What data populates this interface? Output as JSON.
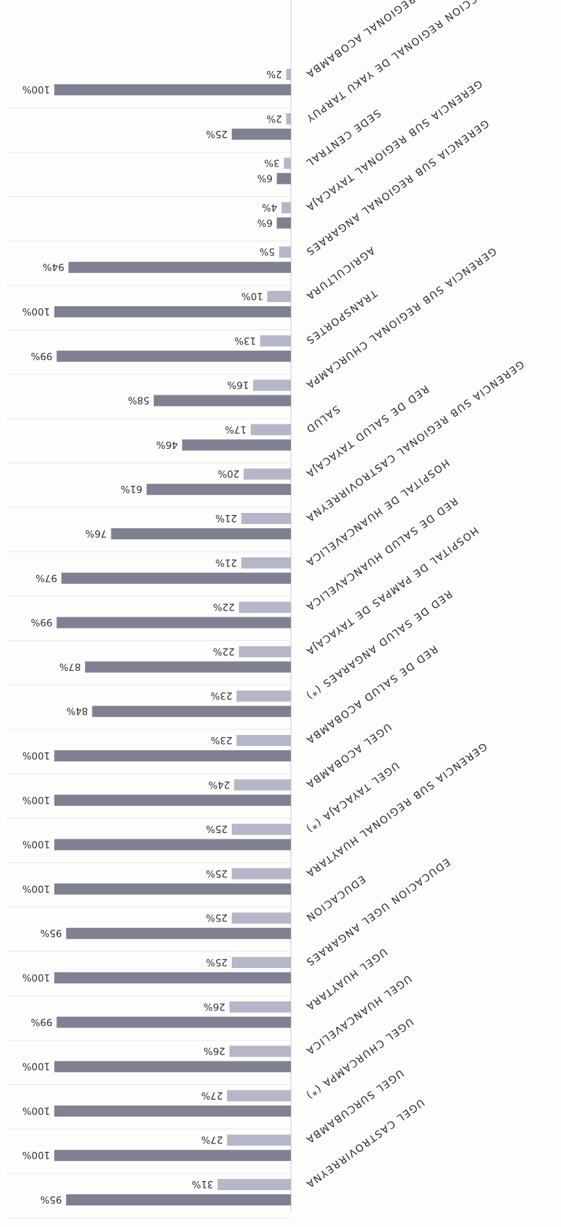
{
  "chart_data": {
    "type": "bar",
    "orientation": "horizontal",
    "rendered_rotated_degrees": 180,
    "categories": [
      "UGEL CASTROVIRREYNA",
      "UGEL SURCUBAMBA",
      "UGEL CHURCAMPA (*)",
      "UGEL HUANCAVELICA",
      "UGEL HUAYTARA",
      "EDUCACION UGEL ANGARAES",
      "EDUCACION",
      "GERENCIA SUB REGIONAL HUAYTARA",
      "UGEL TAYACAJA (*)",
      "UGEL ACOBAMBA",
      "RED DE SALUD ACOBAMBA",
      "RED DE SALUD ANGARAES (*)",
      "HOSPITAL DE PAMPAS DE TAYACAJA",
      "RED DE SALUD HUANCAVELICA",
      "HOSPITAL DE HUANCAVELICA",
      "GERENCIA SUB REGIONAL CASTROVIRREYNA",
      "RED DE SALUD TAYACAJA",
      "SALUD",
      "GERENCIA SUB REGIONAL CHURCAMPA",
      "TRANSPORTES",
      "AGRICULTURA",
      "GERENCIA SUB REGIONAL ANGARAES",
      "GERENCIA SUB REGIONAL TAYACAJA",
      "SEDE CENTRAL",
      "DIRECCION REGIONAL DE YAKU TARPUY",
      "GERENCIA SUB REGIONAL ACOBAMBA"
    ],
    "series": [
      {
        "values": [
          31,
          27,
          27,
          26,
          26,
          25,
          25,
          25,
          25,
          24,
          23,
          23,
          22,
          22,
          21,
          21,
          20,
          17,
          16,
          13,
          10,
          5,
          4,
          3,
          2,
          2
        ]
      },
      {
        "values": [
          95,
          100,
          100,
          100,
          99,
          100,
          95,
          100,
          100,
          100,
          100,
          84,
          87,
          99,
          97,
          76,
          61,
          46,
          58,
          99,
          100,
          94,
          6,
          6,
          25,
          100
        ]
      }
    ],
    "value_labels": [
      [
        "31%",
        "27%",
        "27%",
        "26%",
        "26%",
        "25%",
        "25%",
        "25%",
        "25%",
        "24%",
        "23%",
        "23%",
        "22%",
        "22%",
        "21%",
        "21%",
        "20%",
        "17%",
        "16%",
        "13%",
        "10%",
        "5%",
        "4%",
        "3%",
        "2%",
        "2%"
      ],
      [
        "95%",
        "100%",
        "100%",
        "100%",
        "99%",
        "100%",
        "95%",
        "100%",
        "100%",
        "100%",
        "100%",
        "84%",
        "87%",
        "99%",
        "97%",
        "76%",
        "61%",
        "46%",
        "58%",
        "99%",
        "100%",
        "94%",
        "6%",
        "6%",
        "25%",
        "100%"
      ]
    ],
    "xlim": [
      0,
      100
    ],
    "grid": false,
    "legend": "none",
    "colors": {
      "series_1": "#b5b7c9",
      "series_2": "#7f8193",
      "label_text": "#2f2f38"
    }
  }
}
